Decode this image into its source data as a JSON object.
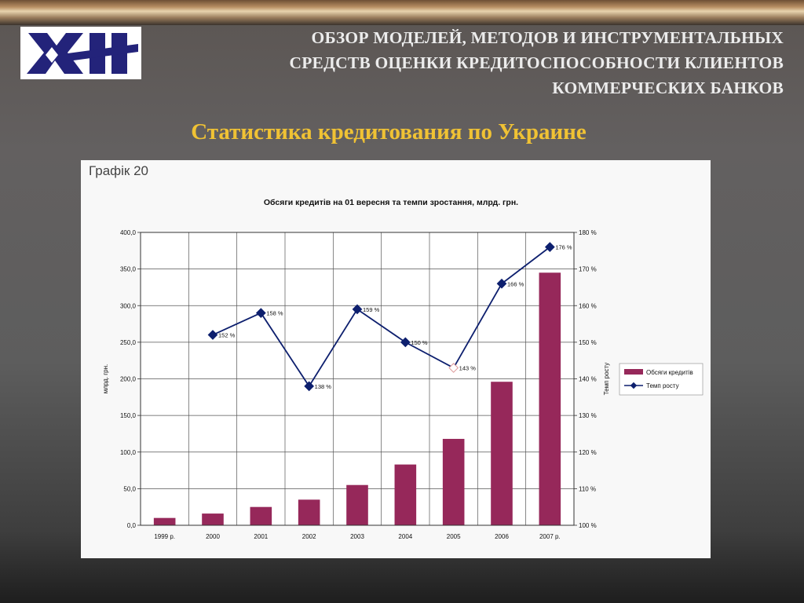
{
  "header": {
    "title_lines": [
      "ОБЗОР МОДЕЛЕЙ, МЕТОДОВ И ИНСТРУМЕНТАЛЬНЫХ",
      "СРЕДСТВ ОЦЕНКИ КРЕДИТОСПОСОБНОСТИ КЛИЕНТОВ",
      "КОММЕРЧЕСКИХ БАНКОВ"
    ],
    "logo_icon": "xai-logo-icon"
  },
  "slide": {
    "subtitle": "Статистика кредитования по Украине",
    "figure_label": "Графік 20"
  },
  "colors": {
    "title_text": "#ececec",
    "subtitle_text": "#f0c234",
    "bar": "#96285a",
    "line": "#0d1f6e",
    "logo_blue": "#23237a"
  },
  "chart_data": {
    "type": "bar",
    "title": "Обсяги кредитів на 01 вересня та темпи зростання, млрд. грн.",
    "categories": [
      "1999 р.",
      "2000",
      "2001",
      "2002",
      "2003",
      "2004",
      "2005",
      "2006",
      "2007 р."
    ],
    "ylabel": "млрд. грн.",
    "ylabel_right": "Темп росту",
    "ylim": [
      0,
      400
    ],
    "ylim_right": [
      100,
      180
    ],
    "yticks": [
      "0,0",
      "50,0",
      "100,0",
      "150,0",
      "200,0",
      "250,0",
      "300,0",
      "350,0",
      "400,0"
    ],
    "yticks_right": [
      "100 %",
      "110 %",
      "120 %",
      "130 %",
      "140 %",
      "150 %",
      "160 %",
      "170 %",
      "180 %"
    ],
    "grid": true,
    "legend_position": "right",
    "series": [
      {
        "name": "Обсяги кредитів",
        "type": "bar",
        "axis": "left",
        "values": [
          10,
          16,
          25,
          35,
          55,
          83,
          118,
          196,
          345
        ]
      },
      {
        "name": "Темп росту",
        "type": "line",
        "axis": "right",
        "values": [
          null,
          152,
          158,
          138,
          159,
          150,
          143,
          166,
          176
        ],
        "labels": [
          null,
          "152 %",
          "158 %",
          "138 %",
          "159 %",
          "150 %",
          "143 %",
          "166 %",
          "176 %"
        ]
      }
    ]
  }
}
